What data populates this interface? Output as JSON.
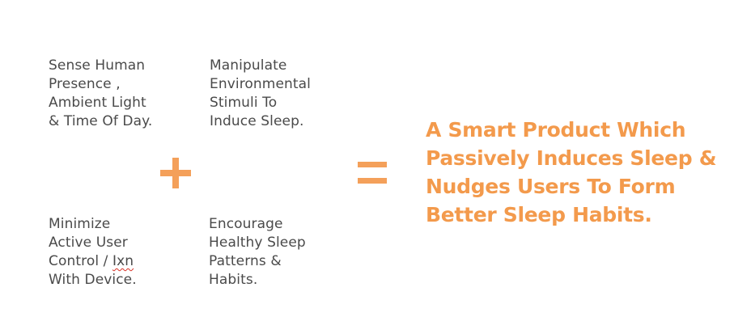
{
  "blocks": {
    "sense": [
      "Sense Human",
      "Presence ,",
      "Ambient Light",
      "& Time Of Day."
    ],
    "manipulate": [
      "Manipulate",
      "Environmental",
      "Stimuli To",
      "Induce Sleep."
    ],
    "minimize": {
      "line1": "Minimize",
      "line2": "Active User",
      "line3_prefix": "Control / ",
      "line3_flagged": "Ixn",
      "line4": "With Device."
    },
    "encourage": [
      "Encourage",
      "Healthy Sleep",
      "Patterns &",
      "Habits."
    ]
  },
  "operators": {
    "plus": "plus-sign",
    "equals": "equals-sign"
  },
  "result": [
    "A Smart Product Which",
    "Passively Induces Sleep &",
    "Nudges Users To Form",
    "Better Sleep Habits."
  ],
  "colors": {
    "accent": "#f39a4c",
    "body_text": "#4a4a4a",
    "spellcheck": "#d93025"
  }
}
